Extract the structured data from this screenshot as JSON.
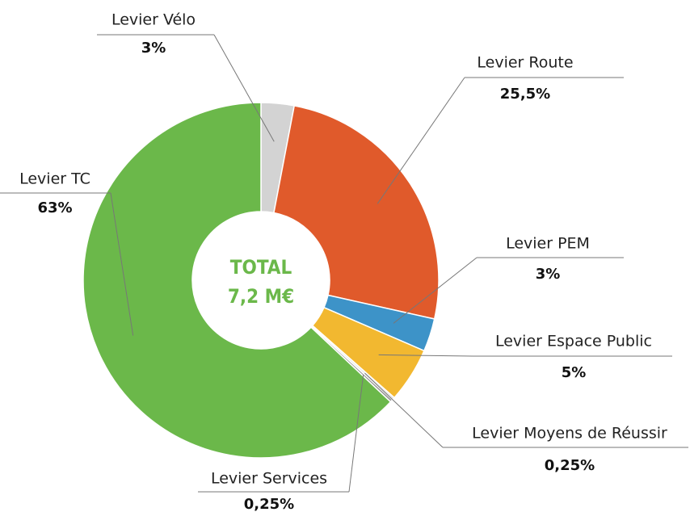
{
  "chart_data": {
    "type": "donut",
    "center_text": [
      "TOTAL",
      "7,2 M€"
    ],
    "categories": [
      "Levier Vélo",
      "Levier Route",
      "Levier PEM",
      "Levier Espace Public",
      "Levier Moyens de Réussir",
      "Levier Services",
      "Levier TC"
    ],
    "values": [
      3,
      25.5,
      3,
      5,
      0.25,
      0.25,
      63
    ],
    "value_labels": [
      "3%",
      "25,5%",
      "3%",
      "5%",
      "0,25%",
      "0,25%",
      "63%"
    ],
    "colors": [
      "#d3d3d3",
      "#e05a2b",
      "#3d93c8",
      "#f2b830",
      "#e8e8e8",
      "#9a9a9a",
      "#6bb84a"
    ]
  }
}
